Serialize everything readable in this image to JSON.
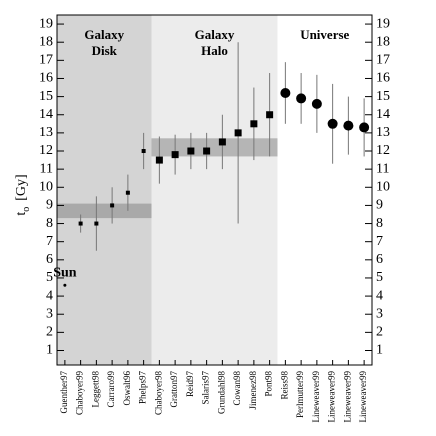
{
  "chart_data": {
    "type": "errorbar",
    "ylabel": "t",
    "ylabel_sub": "o",
    "ylabel_unit": "[Gy]",
    "categories": [
      "Guenther97",
      "Chaboyer99",
      "Leggett98",
      "Carraro99",
      "Oswalt96",
      "Phelps97",
      "Chaboyer98",
      "Gratton97",
      "Reid97",
      "Salaris97",
      "Grundahl98",
      "Cowan98",
      "Jimenez98",
      "Pont98",
      "Reiss98",
      "Perlmutter99",
      "Lineweaver99",
      "Lineweaver99",
      "Lineweaver99",
      "Lineweaver99"
    ],
    "series": [
      {
        "name": "Galaxy Disk",
        "color": "#000000",
        "background": "#d4d4d4",
        "marker": "small-square",
        "band": [
          8.3,
          9.1
        ],
        "band_color": "#a9a9a9",
        "values": [
          4.6,
          8.0,
          8.0,
          9.0,
          9.7,
          12.0,
          null,
          null,
          null,
          null,
          null,
          null,
          null,
          null,
          null,
          null,
          null,
          null,
          null,
          null
        ],
        "errors": [
          null,
          0.5,
          1.5,
          1.0,
          1.0,
          1.0,
          null,
          null,
          null,
          null,
          null,
          null,
          null,
          null,
          null,
          null,
          null,
          null,
          null,
          null
        ]
      },
      {
        "name": "Galaxy Halo",
        "color": "#000000",
        "background": "#ececec",
        "marker": "square",
        "band": [
          11.7,
          12.7
        ],
        "band_color": "#b5b5b5",
        "values": [
          null,
          null,
          null,
          null,
          null,
          null,
          11.5,
          11.8,
          12.0,
          12.0,
          12.5,
          13.0,
          13.5,
          14.0,
          null,
          null,
          null,
          null,
          null,
          null
        ],
        "errors": [
          null,
          null,
          null,
          null,
          null,
          null,
          1.3,
          1.1,
          1.0,
          1.0,
          1.5,
          5.0,
          2.0,
          2.3,
          null,
          null,
          null,
          null,
          null,
          null
        ]
      },
      {
        "name": "Universe",
        "color": "#000000",
        "background": "#ffffff",
        "marker": "circle",
        "values": [
          null,
          null,
          null,
          null,
          null,
          null,
          null,
          null,
          null,
          null,
          null,
          null,
          null,
          null,
          15.2,
          14.9,
          14.6,
          13.5,
          13.4,
          13.3
        ],
        "errors": [
          null,
          null,
          null,
          null,
          null,
          null,
          null,
          null,
          null,
          null,
          null,
          null,
          null,
          null,
          1.7,
          1.4,
          1.6,
          2.2,
          1.6,
          1.6
        ]
      }
    ],
    "annotation": "Sun",
    "ylim": [
      0.2,
      19.5
    ],
    "yticks": [
      1,
      2,
      3,
      4,
      5,
      6,
      7,
      8,
      9,
      10,
      11,
      12,
      13,
      14,
      15,
      16,
      17,
      18,
      19
    ]
  }
}
